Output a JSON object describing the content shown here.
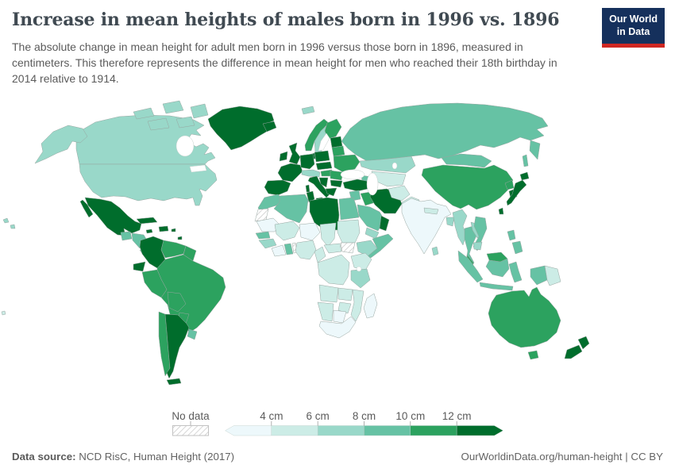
{
  "header": {
    "title": "Increase in mean heights of males born in 1996 vs. 1896",
    "subtitle": "The absolute change in mean height for adult men born in 1996 versus those born in 1896, measured in\ncentimeters. This therefore represents the difference in mean height for men who reached their 18th birthday in\n2014 relative to 1914.",
    "logo": {
      "line1": "Our World",
      "line2": "in Data",
      "bg_color": "#15305c",
      "accent_color": "#cf2722"
    }
  },
  "legend": {
    "no_data_label": "No data",
    "tick_labels": [
      "4 cm",
      "6 cm",
      "8 cm",
      "10 cm",
      "12 cm"
    ],
    "colors": [
      "#edf8fb",
      "#ccece6",
      "#99d8c9",
      "#66c2a4",
      "#2ca25f",
      "#006d2c"
    ]
  },
  "footer": {
    "datasource_label": "Data source:",
    "datasource_value": " NCD RisC, Human Height (2017)",
    "link": "OurWorldinData.org/human-height | CC BY"
  },
  "chart_data": {
    "type": "choropleth_map",
    "title": "Increase in mean heights of males born in 1996 vs. 1896",
    "unit": "cm",
    "bin_labels": [
      "<4 cm",
      "4-6 cm",
      "6-8 cm",
      "8-10 cm",
      "10-12 cm",
      ">12 cm"
    ],
    "bin_colors": [
      "#edf8fb",
      "#ccece6",
      "#99d8c9",
      "#66c2a4",
      "#2ca25f",
      "#006d2c"
    ],
    "no_data_label": "No data",
    "regions": {
      "greenland": 5,
      "canada": 2,
      "arctic-islands": 2,
      "alaska": 2,
      "usa": 2,
      "hawaii": 2,
      "mexico": 5,
      "guatemala": 3,
      "honduras-nicaragua": 3,
      "costa-rica-panama": 3,
      "cuba": 5,
      "jamaica": 5,
      "hispaniola": 5,
      "puerto-rico": 5,
      "trinidad": 5,
      "colombia": 5,
      "venezuela": 4,
      "guyanas": 4,
      "ecuador": 5,
      "peru": 4,
      "brazil": 4,
      "bolivia": 4,
      "paraguay": 4,
      "chile": 4,
      "argentina": 5,
      "uruguay": 3,
      "tierra-del-fuego": 5,
      "iceland": 5,
      "svalbard": 2,
      "norway": 4,
      "sweden": 2,
      "finland": 4,
      "denmark": 5,
      "baltics": 5,
      "united-kingdom": 5,
      "ireland": 5,
      "france": 5,
      "iberia": 5,
      "germany": 5,
      "alps": 2,
      "italy": 5,
      "poland": 5,
      "czech-slovakia": 5,
      "hungary": 4,
      "belarus": 4,
      "ukraine": 4,
      "romania": 4,
      "balkans-west": 5,
      "bulgaria": 5,
      "greece": 5,
      "russia": 3,
      "kazakhstan": 2,
      "central-asia": 1,
      "caucasus": 3,
      "turkey": 5,
      "syria": 3,
      "iraq": 4,
      "iran": 5,
      "saudi-arabia": 3,
      "yemen": 2,
      "oman": 5,
      "afghanistan": 1,
      "pakistan": 1,
      "india": 0,
      "nepal": 1,
      "bangladesh": 2,
      "sri-lanka": 2,
      "myanmar": 2,
      "thailand": 3,
      "laos": 2,
      "vietnam": 3,
      "cambodia": 2,
      "malaysia": 4,
      "indonesia": 3,
      "papua-new-guinea": 1,
      "philippines": 3,
      "china": 4,
      "mongolia": 3,
      "north-korea": 4,
      "south-korea": 5,
      "japan": 5,
      "taiwan": 5,
      "morocco": 3,
      "western-sahara": "nodata",
      "algeria": 3,
      "tunisia": 5,
      "libya": 5,
      "egypt": 3,
      "mauritania": 0,
      "mali": 1,
      "niger": 0,
      "chad": 1,
      "sudan": 1,
      "south-sudan": "nodata",
      "ethiopia": 2,
      "somalia": 3,
      "senegal": 3,
      "guinea": 2,
      "ivory-coast": 0,
      "ghana": 3,
      "togo": "nodata",
      "nigeria": 1,
      "cameroon": 1,
      "central-african-republic": 1,
      "dr-congo": 1,
      "uganda-kenya": 1,
      "tanzania": 2,
      "angola": 1,
      "zambia": 1,
      "mozambique": 1,
      "zimbabwe": 1,
      "namibia": 1,
      "botswana": 0,
      "south-africa": 0,
      "madagascar": 0,
      "australia": 4,
      "new-zealand": 5,
      "polynesia": 1
    }
  }
}
